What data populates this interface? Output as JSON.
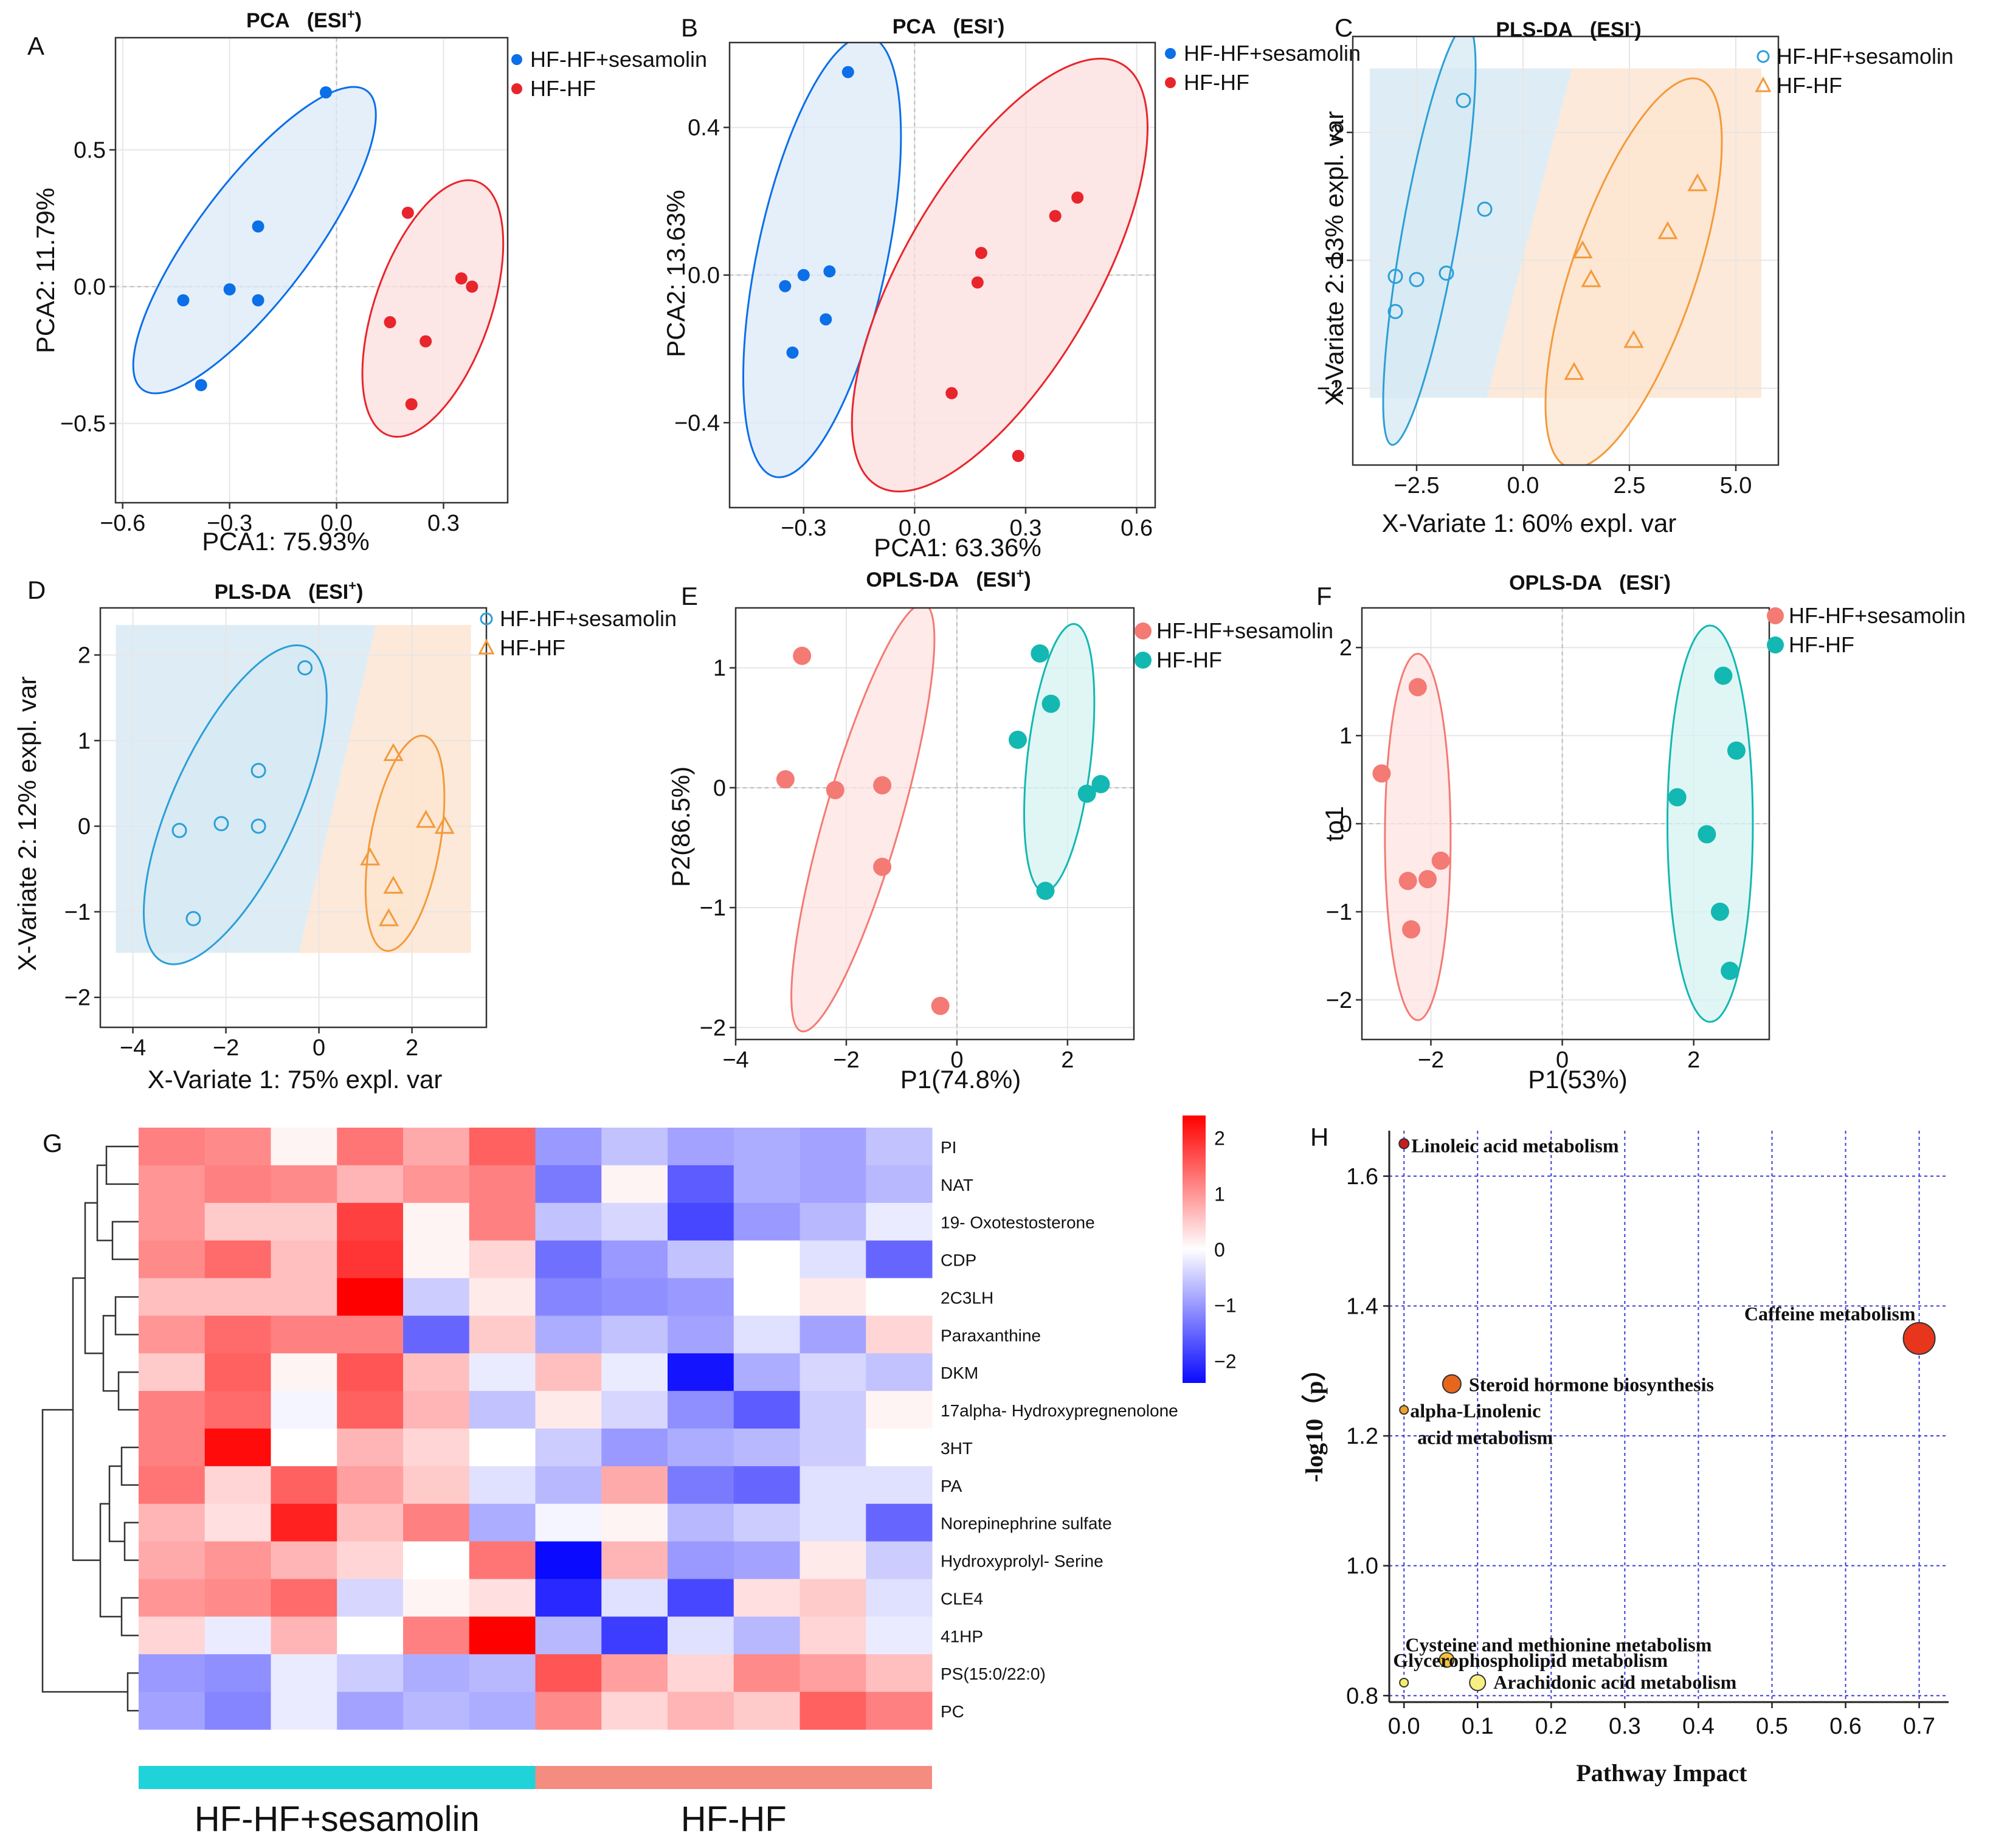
{
  "figure": {
    "description_free": true
  },
  "chart_data": [
    {
      "id": "A",
      "panel_label": "A",
      "type": "scatter",
      "subtype": "pca",
      "title": "PCA",
      "title_suffix": "(ESI",
      "title_sup": "+",
      "title_close": ")",
      "xlabel": "PCA1: 75.93%",
      "ylabel": "PCA2: 11.79%",
      "xlim": [
        -0.62,
        0.48
      ],
      "ylim": [
        -0.79,
        0.91
      ],
      "xticks": [
        -0.6,
        -0.3,
        0.0,
        0.3
      ],
      "xtick_labels": [
        "−0.6",
        "−0.3",
        "0.0",
        "0.3"
      ],
      "yticks": [
        -0.5,
        0.0,
        0.5
      ],
      "ytick_labels": [
        "−0.5",
        "0.0",
        "0.5"
      ],
      "grid": true,
      "series": [
        {
          "name": "HF-HF+sesamolin",
          "color": "#0b6fe8",
          "fill": "#dce9f8",
          "marker": "circle-filled",
          "x": [
            -0.03,
            -0.22,
            -0.3,
            -0.22,
            -0.43,
            -0.38
          ],
          "y": [
            0.71,
            0.22,
            -0.01,
            -0.05,
            -0.05,
            -0.36
          ],
          "ellipse": {
            "cx": -0.23,
            "cy": 0.17,
            "rx": 0.63,
            "ry": 0.17,
            "angle": 60
          }
        },
        {
          "name": "HF-HF",
          "color": "#e8252b",
          "fill": "#fbdede",
          "marker": "circle-filled",
          "x": [
            0.2,
            0.35,
            0.38,
            0.15,
            0.25,
            0.21
          ],
          "y": [
            0.27,
            0.03,
            0.0,
            -0.13,
            -0.2,
            -0.43
          ],
          "ellipse": {
            "cx": 0.27,
            "cy": -0.08,
            "rx": 0.48,
            "ry": 0.165,
            "angle": 75
          }
        }
      ],
      "legend": "right"
    },
    {
      "id": "B",
      "panel_label": "B",
      "type": "scatter",
      "subtype": "pca",
      "title": "PCA",
      "title_suffix": "(ESI",
      "title_sup": "-",
      "title_close": ")",
      "xlabel": "PCA1: 63.36%",
      "ylabel": "PCA2: 13.63%",
      "xlim": [
        -0.5,
        0.65
      ],
      "ylim": [
        -0.63,
        0.63
      ],
      "xticks": [
        -0.3,
        0.0,
        0.3,
        0.6
      ],
      "xtick_labels": [
        "−0.3",
        "0.0",
        "0.3",
        "0.6"
      ],
      "yticks": [
        -0.4,
        0.0,
        0.4
      ],
      "ytick_labels": [
        "−0.4",
        "0.0",
        "0.4"
      ],
      "grid": true,
      "series": [
        {
          "name": "HF-HF+sesamolin",
          "color": "#0b6fe8",
          "fill": "#dce9f8",
          "marker": "circle-filled",
          "x": [
            -0.18,
            -0.23,
            -0.3,
            -0.35,
            -0.24,
            -0.33
          ],
          "y": [
            0.55,
            0.01,
            0.0,
            -0.03,
            -0.12,
            -0.21
          ],
          "ellipse": {
            "cx": -0.25,
            "cy": 0.05,
            "rx": 0.61,
            "ry": 0.175,
            "angle": 78
          }
        },
        {
          "name": "HF-HF",
          "color": "#e8252b",
          "fill": "#fbdede",
          "marker": "circle-filled",
          "x": [
            0.44,
            0.38,
            0.18,
            0.17,
            0.1,
            0.28
          ],
          "y": [
            0.21,
            0.16,
            0.06,
            -0.02,
            -0.32,
            -0.49
          ],
          "ellipse": {
            "cx": 0.23,
            "cy": 0.0,
            "rx": 0.66,
            "ry": 0.26,
            "angle": 60
          }
        }
      ],
      "legend": "right"
    },
    {
      "id": "C",
      "panel_label": "C",
      "type": "scatter",
      "subtype": "pls-da",
      "title": "PLS-DA",
      "title_suffix": "(ESI",
      "title_sup": "-",
      "title_close": ")",
      "xlabel": "X-Variate 1: 60% expl. var",
      "ylabel": "X-Variate 2: 13% expl. var",
      "xlim": [
        -4.0,
        6.0
      ],
      "ylim": [
        -3.2,
        3.5
      ],
      "xticks": [
        -2.5,
        0.0,
        2.5,
        5.0
      ],
      "xtick_labels": [
        "−2.5",
        "0.0",
        "2.5",
        "5.0"
      ],
      "yticks": [
        -2,
        0,
        2
      ],
      "ytick_labels": [
        "−2",
        "0",
        "2"
      ],
      "grid": true,
      "background_regions": true,
      "series": [
        {
          "name": "HF-HF+sesamolin",
          "color": "#2b9fd8",
          "fill": "#d6e8f3",
          "marker": "circle-open",
          "x": [
            -1.4,
            -0.9,
            -1.8,
            -2.5,
            -3.0,
            -3.0
          ],
          "y": [
            2.5,
            0.8,
            -0.2,
            -0.3,
            -0.25,
            -0.8
          ],
          "ellipse": {
            "cx": -2.2,
            "cy": 0.4,
            "rx": 3.4,
            "ry": 0.62,
            "angle": 75
          }
        },
        {
          "name": "HF-HF",
          "color": "#f39a3b",
          "fill": "#fce4cf",
          "marker": "triangle-open",
          "x": [
            4.1,
            3.4,
            1.4,
            1.6,
            2.6,
            1.2
          ],
          "y": [
            1.2,
            0.45,
            0.15,
            -0.3,
            -1.25,
            -1.75
          ],
          "ellipse": {
            "cx": 2.6,
            "cy": -0.2,
            "rx": 3.4,
            "ry": 1.3,
            "angle": 63
          }
        }
      ],
      "legend": "right"
    },
    {
      "id": "D",
      "panel_label": "D",
      "type": "scatter",
      "subtype": "pls-da",
      "title": "PLS-DA",
      "title_suffix": "(ESI",
      "title_sup": "+",
      "title_close": ")",
      "xlabel": "X-Variate 1: 75% expl. var",
      "ylabel": "X-Variate 2: 12% expl. var",
      "xlim": [
        -4.7,
        3.6
      ],
      "ylim": [
        -2.35,
        2.55
      ],
      "xticks": [
        -4,
        -2,
        0,
        2
      ],
      "xtick_labels": [
        "−4",
        "−2",
        "0",
        "2"
      ],
      "yticks": [
        -2,
        -1,
        0,
        1,
        2
      ],
      "ytick_labels": [
        "−2",
        "−1",
        "0",
        "1",
        "2"
      ],
      "grid": true,
      "background_regions": true,
      "series": [
        {
          "name": "HF-HF+sesamolin",
          "color": "#2b9fd8",
          "fill": "#d6e8f3",
          "marker": "circle-open",
          "x": [
            -0.3,
            -1.3,
            -2.1,
            -1.3,
            -3.0,
            -2.7
          ],
          "y": [
            1.85,
            0.65,
            0.03,
            0.0,
            -0.05,
            -1.08
          ],
          "ellipse": {
            "cx": -1.8,
            "cy": 0.25,
            "rx": 2.4,
            "ry": 0.95,
            "angle": 50
          }
        },
        {
          "name": "HF-HF",
          "color": "#f39a3b",
          "fill": "#fce4cf",
          "marker": "triangle-open",
          "x": [
            1.6,
            2.3,
            2.7,
            1.1,
            1.6,
            1.5
          ],
          "y": [
            0.85,
            0.07,
            0.0,
            -0.37,
            -0.7,
            -1.08
          ],
          "ellipse": {
            "cx": 1.85,
            "cy": -0.2,
            "rx": 1.32,
            "ry": 0.68,
            "angle": 72
          }
        }
      ],
      "legend": "right"
    },
    {
      "id": "E",
      "panel_label": "E",
      "type": "scatter",
      "subtype": "opls-da",
      "title": "OPLS-DA",
      "title_suffix": "(ESI",
      "title_sup": "+",
      "title_close": ")",
      "xlabel": "P1(74.8%)",
      "ylabel": "P2(86.5%)",
      "xlim": [
        -4.0,
        3.2
      ],
      "ylim": [
        -2.1,
        1.5
      ],
      "xticks": [
        -4,
        -2,
        0,
        2
      ],
      "xtick_labels": [
        "−4",
        "−2",
        "0",
        "2"
      ],
      "yticks": [
        -2,
        -1,
        0,
        1
      ],
      "ytick_labels": [
        "−2",
        "−1",
        "0",
        "1"
      ],
      "grid": true,
      "series": [
        {
          "name": "HF-HF+sesamolin",
          "color": "#f47a74",
          "fill": "#fde3e1",
          "marker": "circle-filled",
          "x": [
            -2.8,
            -3.1,
            -2.2,
            -1.35,
            -1.35,
            -0.3
          ],
          "y": [
            1.1,
            0.07,
            -0.02,
            0.02,
            -0.66,
            -1.82
          ],
          "ellipse": {
            "cx": -1.7,
            "cy": -0.25,
            "rx": 2.1,
            "ry": 0.48,
            "angle": 58
          }
        },
        {
          "name": "HF-HF",
          "color": "#13b8b2",
          "fill": "#d6f3f1",
          "marker": "circle-filled",
          "x": [
            1.5,
            1.7,
            1.1,
            2.6,
            2.35,
            1.6
          ],
          "y": [
            1.12,
            0.7,
            0.4,
            0.03,
            -0.05,
            -0.86
          ],
          "ellipse": {
            "cx": 1.85,
            "cy": 0.25,
            "rx": 1.15,
            "ry": 0.52,
            "angle": 76
          }
        }
      ],
      "legend": "right"
    },
    {
      "id": "F",
      "panel_label": "F",
      "type": "scatter",
      "subtype": "opls-da",
      "title": "OPLS-DA",
      "title_suffix": "(ESI",
      "title_sup": "-",
      "title_close": ")",
      "xlabel": "P1(53%)",
      "ylabel": "to1",
      "xlim": [
        -3.05,
        3.15
      ],
      "ylim": [
        -2.45,
        2.45
      ],
      "xticks": [
        -2,
        0,
        2
      ],
      "xtick_labels": [
        "−2",
        "0",
        "2"
      ],
      "yticks": [
        -2,
        -1,
        0,
        1,
        2
      ],
      "ytick_labels": [
        "−2",
        "−1",
        "0",
        "1",
        "2"
      ],
      "grid": true,
      "series": [
        {
          "name": "HF-HF+sesamolin",
          "color": "#f47a74",
          "fill": "#fde3e1",
          "marker": "circle-filled",
          "x": [
            -2.2,
            -2.75,
            -1.85,
            -2.05,
            -2.35,
            -2.3
          ],
          "y": [
            1.55,
            0.57,
            -0.42,
            -0.63,
            -0.65,
            -1.2
          ],
          "ellipse": {
            "cx": -2.2,
            "cy": -0.15,
            "rx": 2.08,
            "ry": 0.5,
            "angle": 90
          }
        },
        {
          "name": "HF-HF",
          "color": "#13b8b2",
          "fill": "#d6f3f1",
          "marker": "circle-filled",
          "x": [
            2.45,
            2.65,
            1.75,
            2.2,
            2.4,
            2.55
          ],
          "y": [
            1.68,
            0.83,
            0.3,
            -0.12,
            -1.0,
            -1.67
          ],
          "ellipse": {
            "cx": 2.25,
            "cy": 0.0,
            "rx": 2.25,
            "ry": 0.65,
            "angle": 90
          }
        }
      ],
      "legend": "right"
    },
    {
      "id": "G",
      "panel_label": "G",
      "type": "heatmap",
      "rows": [
        "PI",
        "NAT",
        "19- Oxotestosterone",
        "CDP",
        "2C3LH",
        "Paraxanthine",
        "DKM",
        "17alpha- Hydroxypregnenolone",
        "3HT",
        "PA",
        "Norepinephrine sulfate",
        "Hydroxyprolyl- Serine",
        "CLE4",
        "41HP",
        "PS(15:0/22:0)",
        "PC"
      ],
      "groups": [
        "HF-HF+sesamolin",
        "HF-HF"
      ],
      "group_colors": [
        "#1fd3d9",
        "#f58c80"
      ],
      "values": [
        [
          1.2,
          1.1,
          0.1,
          1.3,
          0.8,
          1.5,
          -1.0,
          -0.6,
          -0.9,
          -0.8,
          -0.9,
          -0.6
        ],
        [
          1.0,
          1.2,
          1.1,
          0.7,
          1.0,
          1.2,
          -1.3,
          0.1,
          -1.6,
          -0.8,
          -0.9,
          -0.7
        ],
        [
          1.0,
          0.5,
          0.5,
          1.8,
          0.1,
          1.2,
          -0.6,
          -0.4,
          -1.8,
          -1.0,
          -0.7,
          -0.2
        ],
        [
          1.1,
          1.4,
          0.6,
          1.9,
          0.1,
          0.4,
          -1.4,
          -1.0,
          -0.6,
          0.0,
          -0.3,
          -1.5
        ],
        [
          0.6,
          0.6,
          0.6,
          2.4,
          -0.5,
          0.2,
          -1.2,
          -1.1,
          -1.0,
          0.0,
          0.2,
          0.0
        ],
        [
          1.0,
          1.4,
          1.2,
          1.2,
          -1.5,
          0.5,
          -0.8,
          -0.6,
          -0.9,
          -0.3,
          -0.9,
          0.4
        ],
        [
          0.5,
          1.5,
          0.1,
          1.6,
          0.6,
          -0.2,
          0.6,
          -0.2,
          -2.3,
          -0.8,
          -0.4,
          -0.6
        ],
        [
          1.2,
          1.4,
          -0.1,
          1.5,
          0.7,
          -0.6,
          0.2,
          -0.4,
          -1.1,
          -1.6,
          -0.5,
          0.1
        ],
        [
          1.2,
          2.3,
          0.0,
          0.7,
          0.4,
          0.0,
          -0.5,
          -1.0,
          -0.8,
          -0.7,
          -0.5,
          0.0
        ],
        [
          1.3,
          0.4,
          1.5,
          0.9,
          0.5,
          -0.3,
          -0.7,
          0.8,
          -1.3,
          -1.5,
          -0.3,
          -0.3
        ],
        [
          0.7,
          0.3,
          2.1,
          0.6,
          1.2,
          -0.8,
          -0.1,
          0.1,
          -0.7,
          -0.5,
          -0.3,
          -1.5
        ],
        [
          0.8,
          1.0,
          0.7,
          0.4,
          0.0,
          1.3,
          -2.5,
          0.7,
          -1.0,
          -0.9,
          0.2,
          -0.5
        ],
        [
          1.0,
          1.1,
          1.4,
          -0.4,
          0.1,
          0.3,
          -2.1,
          -0.3,
          -1.8,
          0.3,
          0.5,
          -0.3
        ],
        [
          0.4,
          -0.2,
          0.7,
          0.0,
          1.2,
          2.5,
          -0.7,
          -1.9,
          -0.3,
          -0.7,
          0.4,
          -0.2
        ],
        [
          -1.0,
          -1.1,
          -0.2,
          -0.5,
          -0.8,
          -0.7,
          1.6,
          0.9,
          0.4,
          1.1,
          0.9,
          0.6
        ],
        [
          -0.9,
          -1.2,
          -0.2,
          -0.9,
          -0.7,
          -0.8,
          1.1,
          0.4,
          0.7,
          0.5,
          1.5,
          1.2
        ]
      ],
      "colorbar": {
        "ticks": [
          2,
          1,
          0,
          -1,
          -2
        ],
        "tick_labels": [
          "2",
          "1",
          "0",
          "−1",
          "−2"
        ],
        "min": -2.4,
        "max": 2.4,
        "low": "#0a0aff",
        "mid": "#ffffff",
        "high": "#ff0000"
      }
    },
    {
      "id": "H",
      "panel_label": "H",
      "type": "scatter",
      "subtype": "pathway-bubble",
      "xlabel": "Pathway Impact",
      "ylabel": "-log10（p）",
      "xlim": [
        -0.02,
        0.74
      ],
      "ylim": [
        0.79,
        1.67
      ],
      "xticks": [
        0.0,
        0.1,
        0.2,
        0.3,
        0.4,
        0.5,
        0.6,
        0.7
      ],
      "xtick_labels": [
        "0.0",
        "0.1",
        "0.2",
        "0.3",
        "0.4",
        "0.5",
        "0.6",
        "0.7"
      ],
      "yticks": [
        0.8,
        1.0,
        1.2,
        1.4,
        1.6
      ],
      "ytick_labels": [
        "0.8",
        "1.0",
        "1.2",
        "1.4",
        "1.6"
      ],
      "grid": "dashed-blue",
      "points": [
        {
          "name": "Linoleic acid metabolism",
          "lines": [
            "Linoleic acid metabolism"
          ],
          "x": 0.0,
          "y": 1.65,
          "size": 8,
          "color": "#c81e1e"
        },
        {
          "name": "Caffeine metabolism",
          "lines": [
            "Caffeine metabolism"
          ],
          "x": 0.7,
          "y": 1.35,
          "size": 26,
          "color": "#e8361c"
        },
        {
          "name": "Steroid hormone biosynthesis",
          "lines": [
            "Steroid hormone biosynthesis"
          ],
          "x": 0.065,
          "y": 1.28,
          "size": 15,
          "color": "#e8661c"
        },
        {
          "name": "alpha-Linolenic acid metabolism",
          "lines": [
            "alpha-Linolenic",
            "acid metabolism"
          ],
          "x": 0.0,
          "y": 1.24,
          "size": 7,
          "color": "#f0a02a"
        },
        {
          "name": "Cysteine and methionine metabolism",
          "lines": [
            "Cysteine and methionine metabolism"
          ],
          "x": 0.058,
          "y": 0.855,
          "size": 12,
          "color": "#f5c33b"
        },
        {
          "name": "Glycerophospholipid metabolism",
          "lines": [
            "Glycerophospholipid metabolism"
          ],
          "x": 0.0,
          "y": 0.82,
          "size": 7,
          "color": "#f7ec6a"
        },
        {
          "name": "Arachidonic acid metabolism",
          "lines": [
            "Arachidonic acid metabolism"
          ],
          "x": 0.1,
          "y": 0.82,
          "size": 13,
          "color": "#f7ef84"
        }
      ]
    }
  ]
}
